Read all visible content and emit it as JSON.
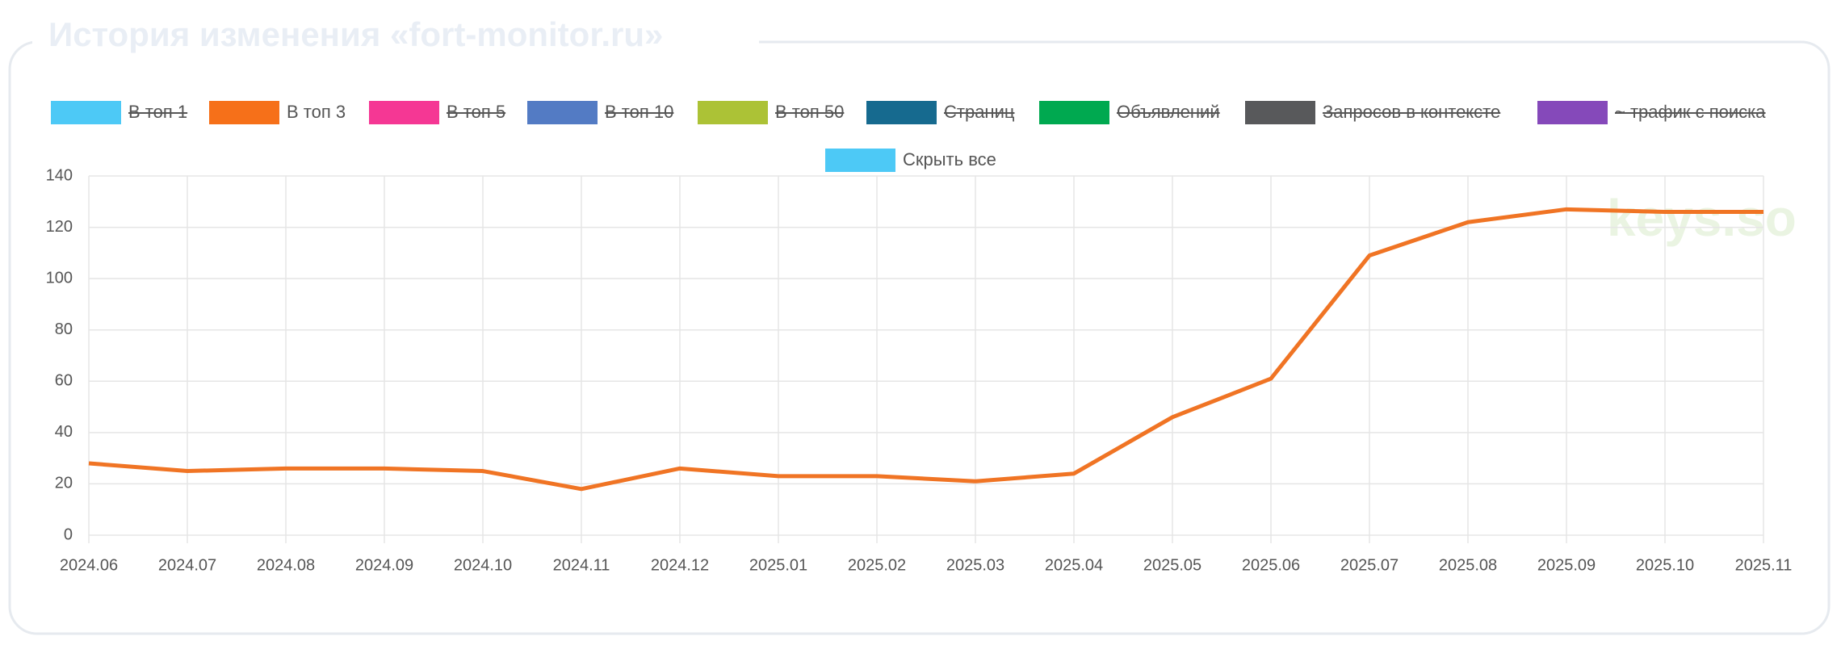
{
  "header": {
    "title": "История изменения «fort-monitor.ru»"
  },
  "chart_data": {
    "type": "line",
    "categories": [
      "2024.06",
      "2024.07",
      "2024.08",
      "2024.09",
      "2024.10",
      "2024.11",
      "2024.12",
      "2025.01",
      "2025.02",
      "2025.03",
      "2025.04",
      "2025.05",
      "2025.06",
      "2025.07",
      "2025.08",
      "2025.09",
      "2025.10",
      "2025.11"
    ],
    "series": [
      {
        "name": "В топ 3",
        "color": "#f07424",
        "values": [
          28,
          25,
          26,
          26,
          25,
          18,
          26,
          23,
          23,
          21,
          24,
          46,
          61,
          109,
          122,
          127,
          126,
          126
        ]
      }
    ],
    "legend": [
      {
        "label": "В топ 1",
        "color": "#4dc9f6",
        "hidden": true
      },
      {
        "label": "В топ 3",
        "color": "#f67019",
        "hidden": false
      },
      {
        "label": "В топ 5",
        "color": "#f53794",
        "hidden": true
      },
      {
        "label": "В топ 10",
        "color": "#537bc4",
        "hidden": true
      },
      {
        "label": "В топ 50",
        "color": "#acc236",
        "hidden": true
      },
      {
        "label": "Страниц",
        "color": "#166a8f",
        "hidden": true
      },
      {
        "label": "Объявлений",
        "color": "#00a950",
        "hidden": true
      },
      {
        "label": "Запросов в контексте",
        "color": "#58595b",
        "hidden": true
      },
      {
        "label": "~ трафик с поиска",
        "color": "#8549ba",
        "hidden": true
      },
      {
        "label": "Скрыть все",
        "color": "#4dc9f6",
        "hidden": false
      }
    ],
    "ylim": [
      0,
      140
    ],
    "yticks": [
      0,
      20,
      40,
      60,
      80,
      100,
      120,
      140
    ],
    "grid": true,
    "watermark": "keys.so"
  }
}
